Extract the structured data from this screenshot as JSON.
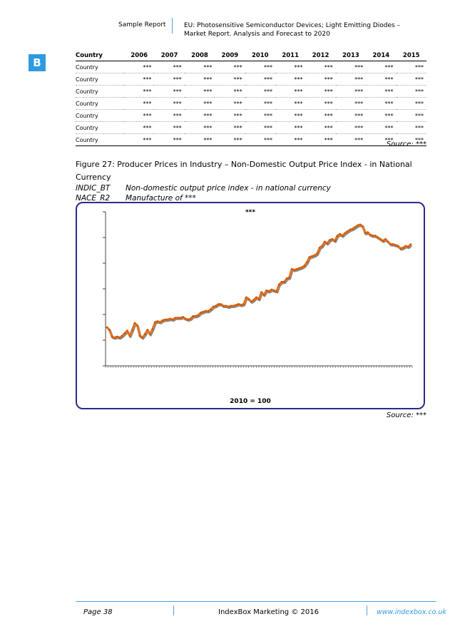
{
  "header": {
    "left": "Sample Report",
    "right_line1": "EU: Photosensitive Semiconductor Devices; Light Emitting Diodes –",
    "right_line2": "Market Report. Analysis and Forecast to 2020"
  },
  "logo": "B",
  "table": {
    "columns": [
      "Country",
      "2006",
      "2007",
      "2008",
      "2009",
      "2010",
      "2011",
      "2012",
      "2013",
      "2014",
      "2015"
    ],
    "rows": [
      [
        "Country",
        "***",
        "***",
        "***",
        "***",
        "***",
        "***",
        "***",
        "***",
        "***",
        "***"
      ],
      [
        "Country",
        "***",
        "***",
        "***",
        "***",
        "***",
        "***",
        "***",
        "***",
        "***",
        "***"
      ],
      [
        "Country",
        "***",
        "***",
        "***",
        "***",
        "***",
        "***",
        "***",
        "***",
        "***",
        "***"
      ],
      [
        "Country",
        "***",
        "***",
        "***",
        "***",
        "***",
        "***",
        "***",
        "***",
        "***",
        "***"
      ],
      [
        "Country",
        "***",
        "***",
        "***",
        "***",
        "***",
        "***",
        "***",
        "***",
        "***",
        "***"
      ],
      [
        "Country",
        "***",
        "***",
        "***",
        "***",
        "***",
        "***",
        "***",
        "***",
        "***",
        "***"
      ],
      [
        "Country",
        "***",
        "***",
        "***",
        "***",
        "***",
        "***",
        "***",
        "***",
        "***",
        "***"
      ]
    ],
    "source": "Source: ***"
  },
  "figure": {
    "title": "Figure 27: Producer Prices in Industry – Non-Domestic Output Price Index - in National Currency",
    "meta": [
      {
        "key": "INDIC_BT",
        "value": "Non-domestic output price index - in national currency"
      },
      {
        "key": "NACE_R2",
        "value": "Manufacture of ***"
      }
    ],
    "source": "Source: ***"
  },
  "chart_data": {
    "type": "line",
    "title": "***",
    "note": "2010 = 100",
    "series_color": "#e8731f",
    "x_ticks": 121,
    "y_ticks": 7,
    "values": [
      45,
      42,
      34,
      33,
      34,
      33,
      35,
      38,
      41,
      35,
      42,
      50,
      47,
      35,
      33,
      37,
      42,
      37,
      43,
      51,
      52,
      51,
      53,
      54,
      54,
      55,
      54,
      56,
      56,
      56,
      57,
      55,
      54,
      55,
      58,
      58,
      59,
      62,
      63,
      64,
      64,
      66,
      69,
      70,
      72,
      72,
      70,
      70,
      69,
      70,
      70,
      71,
      72,
      71,
      72,
      80,
      78,
      75,
      77,
      80,
      78,
      86,
      83,
      88,
      87,
      89,
      88,
      87,
      95,
      98,
      98,
      102,
      103,
      113,
      112,
      113,
      114,
      115,
      117,
      121,
      127,
      128,
      129,
      131,
      138,
      140,
      145,
      143,
      147,
      148,
      146,
      152,
      154,
      152,
      155,
      157,
      159,
      160,
      162,
      164,
      165,
      163,
      155,
      156,
      153,
      152,
      152,
      150,
      148,
      146,
      148,
      145,
      142,
      142,
      141,
      140,
      137,
      138,
      140,
      139,
      142
    ]
  },
  "footer": {
    "page": "Page 38",
    "center": "IndexBox Marketing © 2016",
    "url": "www.indexbox.co.uk"
  }
}
